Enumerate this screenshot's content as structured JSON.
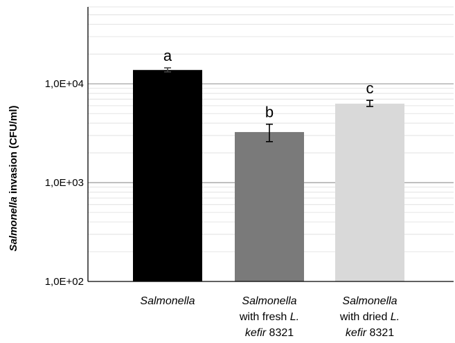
{
  "chart_data": {
    "type": "bar",
    "scale": "log",
    "ylabel_italic": "Salmonella",
    "ylabel_rest": " invasion (CFU/ml)",
    "ylim": [
      100,
      60000
    ],
    "yticks": [
      100,
      1000,
      10000
    ],
    "ytick_labels": [
      "1,0E+02",
      "1,0E+03",
      "1,0E+04"
    ],
    "grid": "major and minor horizontal gridlines",
    "categories": [
      {
        "lines": [
          [
            {
              "t": "Salmonella",
              "i": true
            }
          ]
        ]
      },
      {
        "lines": [
          [
            {
              "t": "Salmonella",
              "i": true
            }
          ],
          [
            {
              "t": "with fresh ",
              "i": false
            },
            {
              "t": "L.",
              "i": true
            }
          ],
          [
            {
              "t": "kefir",
              "i": true
            },
            {
              "t": " 8321",
              "i": false
            }
          ]
        ]
      },
      {
        "lines": [
          [
            {
              "t": "Salmonella",
              "i": true
            }
          ],
          [
            {
              "t": "with dried ",
              "i": false
            },
            {
              "t": "L.",
              "i": true
            }
          ],
          [
            {
              "t": "kefir",
              "i": true
            },
            {
              "t": " 8321",
              "i": false
            }
          ]
        ]
      }
    ],
    "values": [
      13800,
      3250,
      6300
    ],
    "errors": [
      [
        13200,
        14500
      ],
      [
        2600,
        3900
      ],
      [
        5900,
        6800
      ]
    ],
    "significance_labels": [
      "a",
      "b",
      "c"
    ],
    "colors": [
      "#000000",
      "#7a7a7a",
      "#d9d9d9"
    ]
  }
}
